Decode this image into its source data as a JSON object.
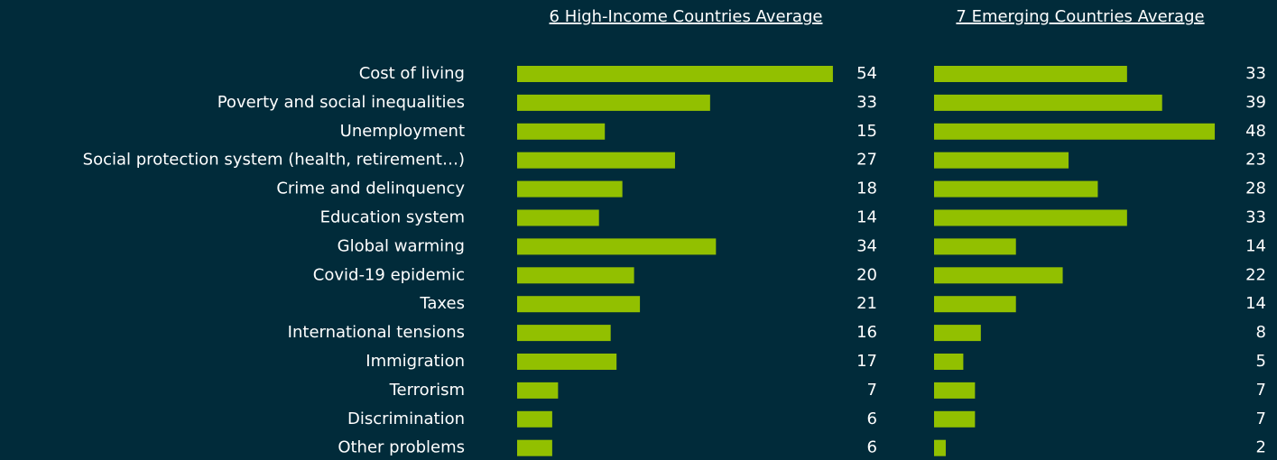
{
  "chart_data": {
    "type": "bar",
    "orientation": "horizontal",
    "categories": [
      "Cost of living",
      "Poverty and social inequalities",
      "Unemployment",
      "Social protection system (health, retirement…)",
      "Crime and delinquency",
      "Education system",
      "Global warming",
      "Covid-19 epidemic",
      "Taxes",
      "International tensions",
      "Immigration",
      "Terrorism",
      "Discrimination",
      "Other problems"
    ],
    "series": [
      {
        "name": "6 High-Income Countries Average",
        "color": "#92c000",
        "values": [
          54,
          33,
          15,
          27,
          18,
          14,
          34,
          20,
          21,
          16,
          17,
          7,
          6,
          6
        ]
      },
      {
        "name": "7 Emerging Countries Average",
        "color": "#92c000",
        "values": [
          33,
          39,
          48,
          23,
          28,
          33,
          14,
          22,
          14,
          8,
          5,
          7,
          7,
          2
        ]
      }
    ]
  }
}
